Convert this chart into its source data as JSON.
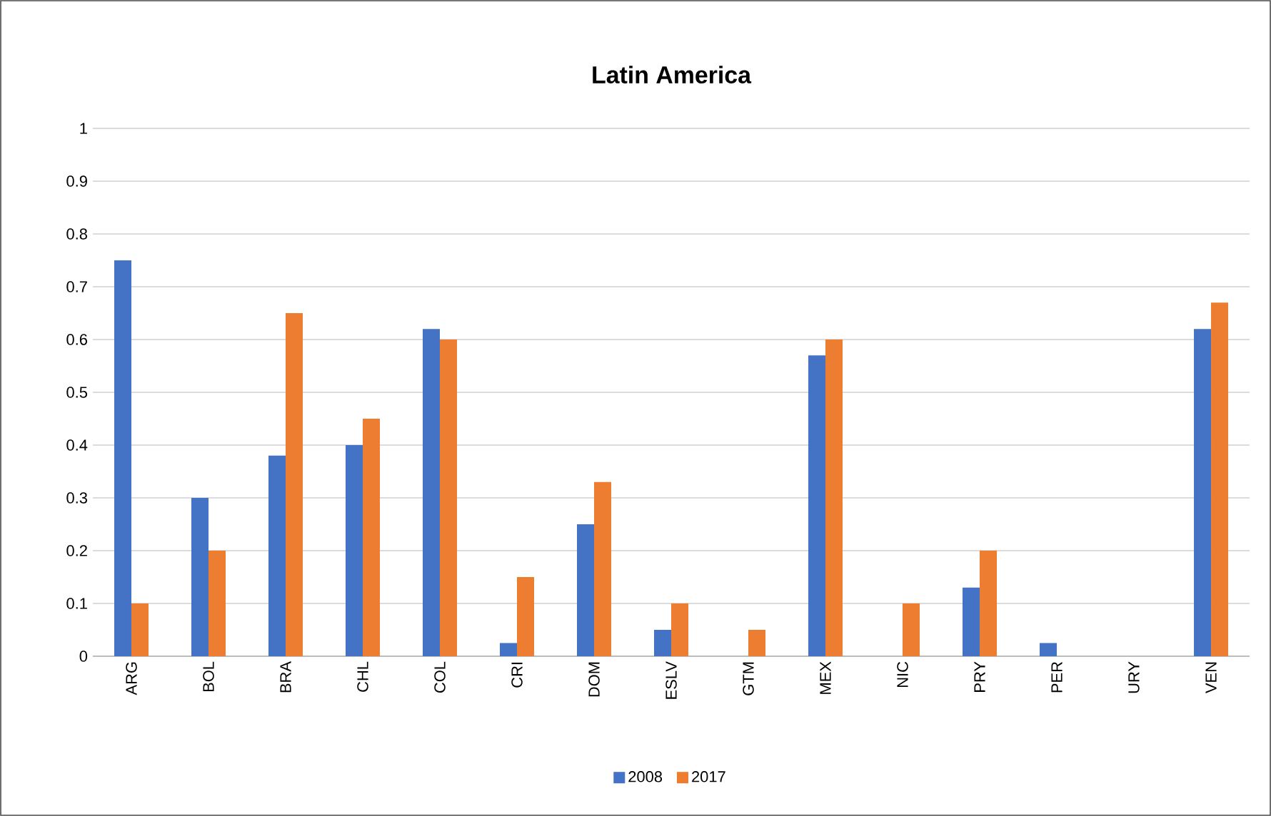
{
  "chart_data": {
    "type": "bar",
    "title": "Latin America",
    "categories": [
      "ARG",
      "BOL",
      "BRA",
      "CHL",
      "COL",
      "CRI",
      "DOM",
      "ESLV",
      "GTM",
      "MEX",
      "NIC",
      "PRY",
      "PER",
      "URY",
      "VEN"
    ],
    "series": [
      {
        "name": "2008",
        "color": "#4472c4",
        "values": [
          0.75,
          0.3,
          0.38,
          0.4,
          0.62,
          0.025,
          0.25,
          0.05,
          0,
          0.57,
          0,
          0.13,
          0.025,
          0,
          0.62
        ]
      },
      {
        "name": "2017",
        "color": "#ed7d31",
        "values": [
          0.1,
          0.2,
          0.65,
          0.45,
          0.6,
          0.15,
          0.33,
          0.1,
          0.05,
          0.6,
          0.1,
          0.2,
          0,
          0,
          0.67
        ]
      }
    ],
    "ylim": [
      0,
      1
    ],
    "yticks": [
      0,
      0.1,
      0.2,
      0.3,
      0.4,
      0.5,
      0.6,
      0.7,
      0.8,
      0.9,
      1
    ],
    "grid": "y",
    "legend": "bottom"
  }
}
